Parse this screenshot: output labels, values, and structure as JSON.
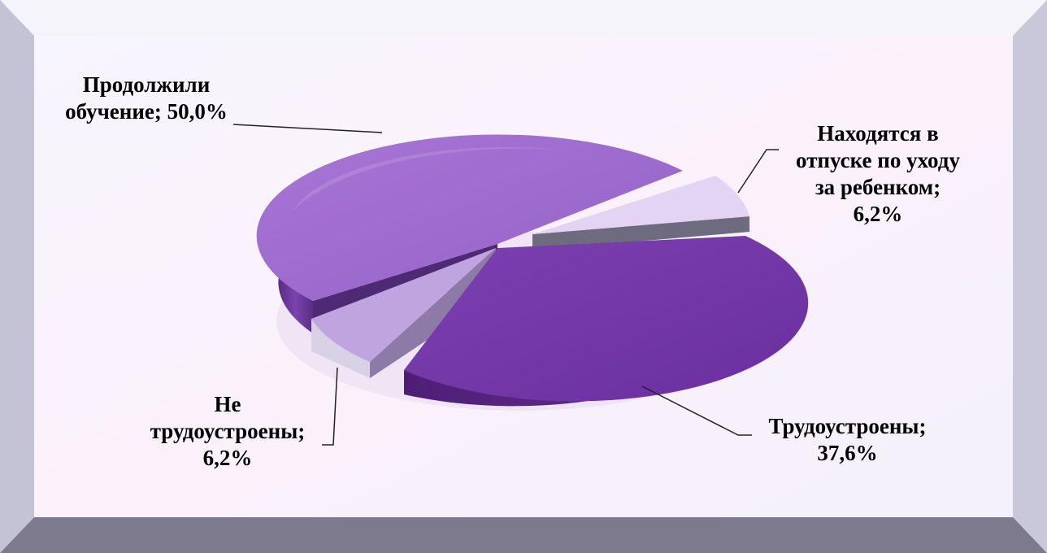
{
  "chart_data": {
    "type": "pie",
    "title": "",
    "three_d": true,
    "slices": [
      {
        "key": "study",
        "label_lines": [
          "Продолжили",
          "обучение; 50,0%"
        ],
        "label": "Продолжили обучение",
        "value": 50.0,
        "color": "#9E68CC"
      },
      {
        "key": "leave",
        "label_lines": [
          "Находятся в",
          "отпуске по уходу",
          "за ребенком;",
          "6,2%"
        ],
        "label": "Находятся в отпуске по уходу за ребенком",
        "value": 6.2,
        "color": "#E2D2F2"
      },
      {
        "key": "employed",
        "label_lines": [
          "Трудоустроены;",
          "37,6%"
        ],
        "label": "Трудоустроены",
        "value": 37.6,
        "color": "#7438A6"
      },
      {
        "key": "unemployed",
        "label_lines": [
          "Не",
          "трудоустроены;",
          "6,2%"
        ],
        "label": "Не трудоустроены",
        "value": 6.2,
        "color": "#BFA3E0"
      }
    ]
  }
}
